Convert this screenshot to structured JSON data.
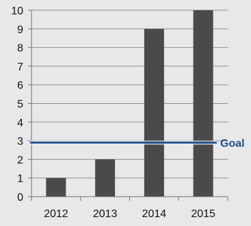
{
  "chart_data": {
    "type": "bar",
    "categories": [
      "2012",
      "2013",
      "2014",
      "2015"
    ],
    "values": [
      1,
      2,
      9,
      10
    ],
    "title": "",
    "xlabel": "",
    "ylabel": "",
    "ylim": [
      0,
      10
    ],
    "y_ticks": [
      "0",
      "1",
      "2",
      "3",
      "4",
      "5",
      "6",
      "7",
      "8",
      "9",
      "10"
    ],
    "grid": true,
    "goal": {
      "label": "Goal",
      "value": 2.9
    },
    "colors": {
      "background": "#e8e8ea",
      "bar": "#4a4a4a",
      "grid": "#8c8c8c",
      "axis": "#6e6e6e",
      "goal": "#1f4f8a"
    }
  }
}
